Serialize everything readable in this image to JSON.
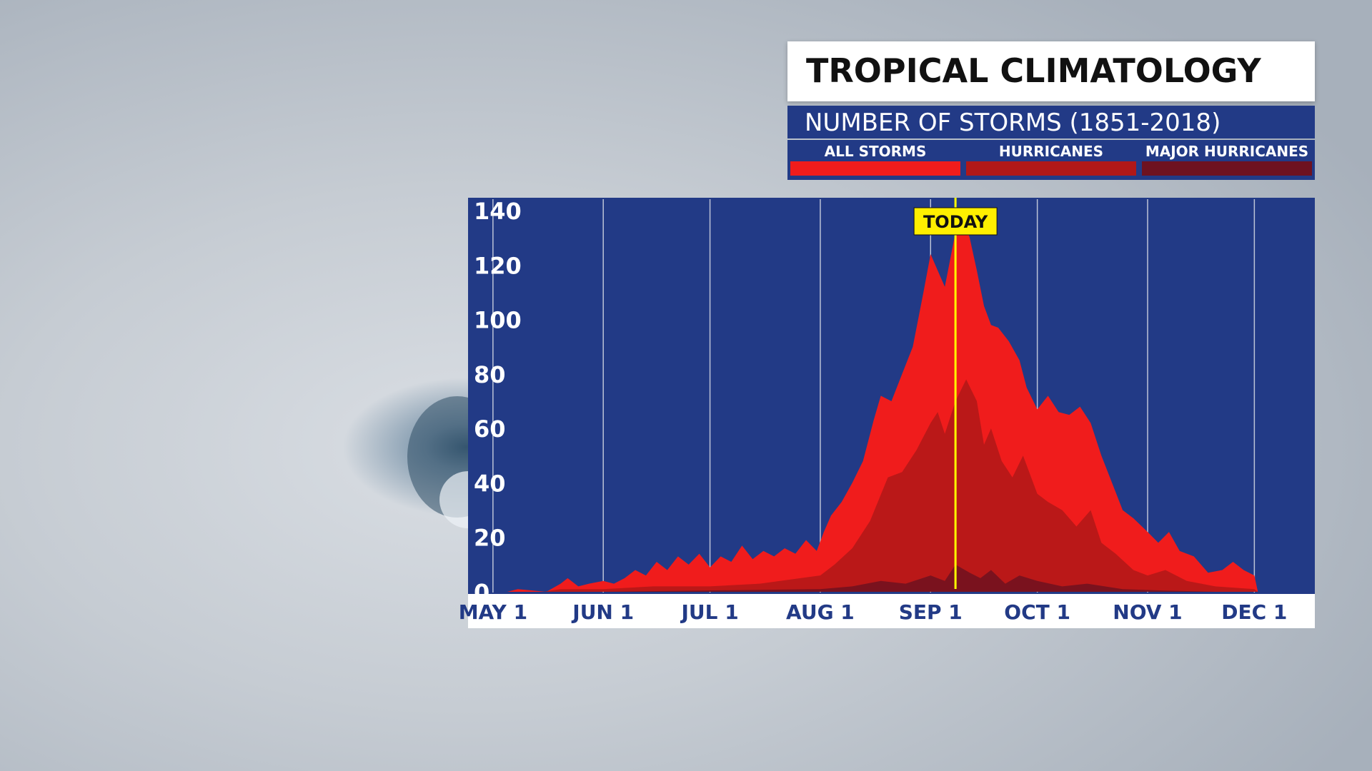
{
  "header": {
    "title": "TROPICAL CLIMATOLOGY",
    "subtitle": "NUMBER OF STORMS (1851-2018)"
  },
  "legend": [
    {
      "label": "ALL STORMS",
      "color": "#f01c1c"
    },
    {
      "label": "HURRICANES",
      "color": "#b01818"
    },
    {
      "label": "MAJOR HURRICANES",
      "color": "#6e1220"
    }
  ],
  "colors": {
    "panel": "#223a86",
    "axis_strip": "#ffffff",
    "axis_text": "#223a86",
    "grid": "#d8dce6",
    "today_line": "#ffff00",
    "today_label_bg": "#ffef00"
  },
  "chart_data": {
    "type": "area",
    "title": "NUMBER OF STORMS (1851-2018)",
    "xlabel": "",
    "ylabel": "",
    "x_axis_type": "date",
    "xlim": [
      "Apr 24",
      "Dec 18"
    ],
    "ylim": [
      0,
      140
    ],
    "y_ticks": [
      0,
      20,
      40,
      60,
      80,
      100,
      120,
      140
    ],
    "x_tick_labels": [
      "MAY 1",
      "JUN 1",
      "JUL 1",
      "AUG 1",
      "SEP 1",
      "OCT 1",
      "NOV 1",
      "DEC 1"
    ],
    "x_tick_dates": [
      "May 1",
      "Jun 1",
      "Jul 1",
      "Aug 1",
      "Sep 1",
      "Oct 1",
      "Nov 1",
      "Dec 1"
    ],
    "grid": "vertical",
    "annotation": {
      "label": "TODAY",
      "date": "Sep 8"
    },
    "series": [
      {
        "name": "ALL STORMS",
        "color": "#f01c1c",
        "points": [
          [
            "May 5",
            0
          ],
          [
            "May 8",
            1
          ],
          [
            "May 12",
            0.5
          ],
          [
            "May 16",
            0
          ],
          [
            "May 20",
            3
          ],
          [
            "May 22",
            5
          ],
          [
            "May 25",
            2
          ],
          [
            "May 28",
            3
          ],
          [
            "Jun 1",
            4
          ],
          [
            "Jun 4",
            3
          ],
          [
            "Jun 7",
            5
          ],
          [
            "Jun 10",
            8
          ],
          [
            "Jun 13",
            6
          ],
          [
            "Jun 16",
            11
          ],
          [
            "Jun 19",
            8
          ],
          [
            "Jun 22",
            13
          ],
          [
            "Jun 25",
            10
          ],
          [
            "Jun 28",
            14
          ],
          [
            "Jul 1",
            9
          ],
          [
            "Jul 4",
            13
          ],
          [
            "Jul 7",
            11
          ],
          [
            "Jul 10",
            17
          ],
          [
            "Jul 13",
            12
          ],
          [
            "Jul 16",
            15
          ],
          [
            "Jul 19",
            13
          ],
          [
            "Jul 22",
            16
          ],
          [
            "Jul 25",
            14
          ],
          [
            "Jul 28",
            19
          ],
          [
            "Jul 31",
            15
          ],
          [
            "Aug 2",
            22
          ],
          [
            "Aug 4",
            28
          ],
          [
            "Aug 7",
            33
          ],
          [
            "Aug 10",
            40
          ],
          [
            "Aug 13",
            48
          ],
          [
            "Aug 16",
            63
          ],
          [
            "Aug 18",
            72
          ],
          [
            "Aug 21",
            70
          ],
          [
            "Aug 24",
            80
          ],
          [
            "Aug 27",
            90
          ],
          [
            "Aug 30",
            110
          ],
          [
            "Sep 1",
            124
          ],
          [
            "Sep 3",
            118
          ],
          [
            "Sep 5",
            112
          ],
          [
            "Sep 8",
            132
          ],
          [
            "Sep 10",
            138
          ],
          [
            "Sep 12",
            130
          ],
          [
            "Sep 14",
            118
          ],
          [
            "Sep 16",
            105
          ],
          [
            "Sep 18",
            98
          ],
          [
            "Sep 20",
            97
          ],
          [
            "Sep 23",
            92
          ],
          [
            "Sep 26",
            85
          ],
          [
            "Sep 28",
            75
          ],
          [
            "Oct 1",
            67
          ],
          [
            "Oct 4",
            72
          ],
          [
            "Oct 7",
            66
          ],
          [
            "Oct 10",
            65
          ],
          [
            "Oct 13",
            68
          ],
          [
            "Oct 16",
            62
          ],
          [
            "Oct 19",
            50
          ],
          [
            "Oct 22",
            40
          ],
          [
            "Oct 25",
            30
          ],
          [
            "Oct 28",
            27
          ],
          [
            "Nov 1",
            22
          ],
          [
            "Nov 4",
            18
          ],
          [
            "Nov 7",
            22
          ],
          [
            "Nov 10",
            15
          ],
          [
            "Nov 14",
            13
          ],
          [
            "Nov 18",
            7
          ],
          [
            "Nov 22",
            8
          ],
          [
            "Nov 25",
            11
          ],
          [
            "Nov 28",
            8
          ],
          [
            "Dec 1",
            6
          ],
          [
            "Dec 2",
            0
          ]
        ]
      },
      {
        "name": "HURRICANES",
        "color": "#b01818",
        "points": [
          [
            "May 15",
            0
          ],
          [
            "May 20",
            1
          ],
          [
            "Jun 1",
            1
          ],
          [
            "Jun 15",
            2
          ],
          [
            "Jul 1",
            2
          ],
          [
            "Jul 15",
            3
          ],
          [
            "Aug 1",
            6
          ],
          [
            "Aug 5",
            10
          ],
          [
            "Aug 10",
            16
          ],
          [
            "Aug 15",
            26
          ],
          [
            "Aug 20",
            42
          ],
          [
            "Aug 24",
            44
          ],
          [
            "Aug 28",
            52
          ],
          [
            "Sep 1",
            62
          ],
          [
            "Sep 3",
            66
          ],
          [
            "Sep 5",
            58
          ],
          [
            "Sep 8",
            70
          ],
          [
            "Sep 11",
            78
          ],
          [
            "Sep 14",
            70
          ],
          [
            "Sep 16",
            54
          ],
          [
            "Sep 18",
            60
          ],
          [
            "Sep 21",
            48
          ],
          [
            "Sep 24",
            42
          ],
          [
            "Sep 27",
            50
          ],
          [
            "Oct 1",
            36
          ],
          [
            "Oct 4",
            33
          ],
          [
            "Oct 8",
            30
          ],
          [
            "Oct 12",
            24
          ],
          [
            "Oct 16",
            30
          ],
          [
            "Oct 19",
            18
          ],
          [
            "Oct 23",
            14
          ],
          [
            "Oct 28",
            8
          ],
          [
            "Nov 1",
            6
          ],
          [
            "Nov 6",
            8
          ],
          [
            "Nov 12",
            4
          ],
          [
            "Nov 20",
            2
          ],
          [
            "Dec 1",
            1
          ],
          [
            "Dec 2",
            0
          ]
        ]
      },
      {
        "name": "MAJOR HURRICANES",
        "color": "#6e1220",
        "points": [
          [
            "Jun 1",
            0
          ],
          [
            "Jul 1",
            0.5
          ],
          [
            "Aug 1",
            1
          ],
          [
            "Aug 10",
            2
          ],
          [
            "Aug 18",
            4
          ],
          [
            "Aug 25",
            3
          ],
          [
            "Sep 1",
            6
          ],
          [
            "Sep 5",
            4
          ],
          [
            "Sep 8",
            10
          ],
          [
            "Sep 12",
            7
          ],
          [
            "Sep 15",
            5
          ],
          [
            "Sep 18",
            8
          ],
          [
            "Sep 22",
            3
          ],
          [
            "Sep 26",
            6
          ],
          [
            "Oct 1",
            4
          ],
          [
            "Oct 8",
            2
          ],
          [
            "Oct 15",
            3
          ],
          [
            "Oct 25",
            1
          ],
          [
            "Nov 5",
            0.5
          ],
          [
            "Nov 20",
            0
          ]
        ]
      }
    ]
  }
}
